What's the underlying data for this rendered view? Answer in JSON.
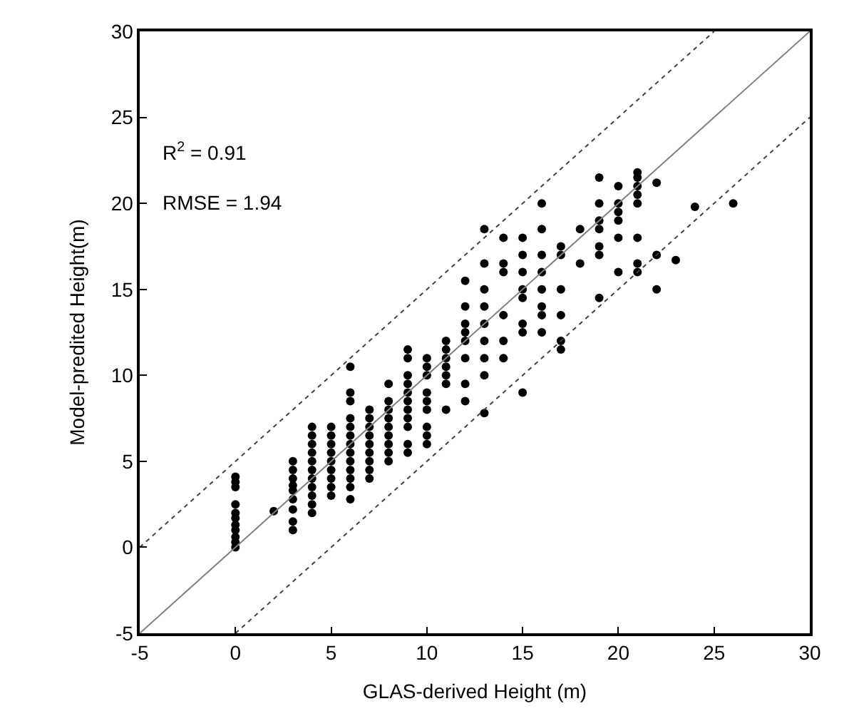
{
  "chart_data": {
    "type": "scatter",
    "xlabel": "GLAS-derived Height (m)",
    "ylabel": "Model-predited Height(m)",
    "xlim": [
      -5,
      30
    ],
    "ylim": [
      -5,
      30
    ],
    "xticks": [
      -5,
      0,
      5,
      10,
      15,
      20,
      25,
      30
    ],
    "yticks": [
      -5,
      0,
      5,
      10,
      15,
      20,
      25,
      30
    ],
    "annotations": [
      "R$^{2}$ = 0.91",
      "RMSE = 1.94"
    ],
    "series": [
      {
        "color": "#000000",
        "marker": "circle",
        "x": [
          0,
          0,
          0,
          0,
          0,
          0,
          0,
          0,
          0,
          0,
          0,
          2,
          3,
          3,
          3,
          3,
          3,
          3,
          3,
          3,
          3,
          4,
          4,
          4,
          4,
          4,
          4,
          4,
          4,
          4,
          4,
          4,
          5,
          5,
          5,
          5,
          5,
          5,
          5,
          5,
          5,
          6,
          6,
          6,
          6,
          6,
          6,
          6,
          6,
          6,
          6,
          6,
          6,
          6,
          7,
          7,
          7,
          7,
          7,
          7,
          7,
          7,
          7,
          8,
          8,
          8,
          8,
          8,
          8,
          8,
          8,
          8,
          9,
          9,
          9,
          9,
          9,
          9,
          9,
          9,
          9,
          9,
          9,
          10,
          10,
          10,
          10,
          10,
          10,
          10,
          10,
          10,
          11,
          11,
          11,
          11,
          11,
          11,
          11,
          12,
          12,
          12,
          12,
          12,
          12,
          12,
          12,
          13,
          13,
          13,
          13,
          13,
          13,
          13,
          13,
          13,
          14,
          14,
          14,
          14,
          14,
          14,
          15,
          15,
          15,
          15,
          15,
          15,
          15,
          15,
          16,
          16,
          16,
          16,
          16,
          16,
          16,
          16,
          17,
          17,
          17,
          17,
          17,
          17,
          18,
          18,
          19,
          19,
          19,
          19,
          19,
          19,
          19,
          20,
          20,
          20,
          20,
          20,
          20,
          21,
          21,
          21,
          21,
          21,
          21,
          21,
          21,
          22,
          22,
          22,
          23,
          24,
          26
        ],
        "values": [
          0,
          0.3,
          0.6,
          1,
          1.3,
          1.7,
          2,
          2.5,
          3.5,
          3.8,
          4.1,
          2.1,
          1,
          1.5,
          2.2,
          2.8,
          3.3,
          3.6,
          4,
          4.5,
          5,
          2,
          2.5,
          3,
          3.5,
          4,
          4.5,
          5,
          5.5,
          6,
          6.5,
          7,
          3,
          3.5,
          4,
          4.5,
          5,
          5.5,
          6,
          6.5,
          7,
          2.8,
          3.5,
          4,
          4.5,
          5,
          5.5,
          6,
          6.5,
          7,
          7.5,
          8.5,
          9,
          10.5,
          4,
          4.5,
          5,
          5.5,
          6,
          6.5,
          7,
          7.5,
          8,
          5,
          5.5,
          6,
          6.5,
          7,
          7.5,
          8,
          8.5,
          9.5,
          5.5,
          6,
          7,
          7.5,
          8,
          8.5,
          9,
          9.5,
          10,
          11,
          11.5,
          6,
          6.5,
          7,
          8,
          8.5,
          9,
          10,
          10.5,
          11,
          8,
          9.5,
          10,
          10.5,
          11,
          11.5,
          12,
          8.5,
          9.5,
          11,
          12,
          12.5,
          13,
          14,
          15.5,
          7.8,
          10,
          11,
          12,
          13,
          14,
          15,
          16.5,
          18.5,
          11,
          12,
          13.5,
          16,
          16.5,
          18,
          9,
          12.5,
          13,
          14.5,
          15,
          16,
          17,
          18,
          12.5,
          13.5,
          14,
          15,
          16,
          17,
          18.5,
          20,
          11.5,
          12,
          13.5,
          15,
          17,
          17.5,
          16.5,
          18.5,
          14.5,
          17,
          17.5,
          18.5,
          19,
          20,
          21.5,
          16,
          18,
          19,
          19.5,
          20,
          21,
          16,
          16.5,
          18,
          20,
          20.5,
          21,
          21.5,
          21.8,
          15,
          17,
          21.2,
          16.7,
          19.8,
          20
        ]
      },
      {
        "type": "line",
        "color": "#808080",
        "line_style": "solid",
        "x": [
          -5,
          30
        ],
        "values": [
          -5,
          30
        ]
      },
      {
        "type": "line",
        "color": "#404040",
        "line_style": "dotted",
        "x": [
          -5,
          25
        ],
        "values": [
          0,
          30
        ]
      },
      {
        "type": "line",
        "color": "#404040",
        "line_style": "dotted",
        "x": [
          0,
          30
        ],
        "values": [
          -5,
          25
        ]
      }
    ]
  }
}
